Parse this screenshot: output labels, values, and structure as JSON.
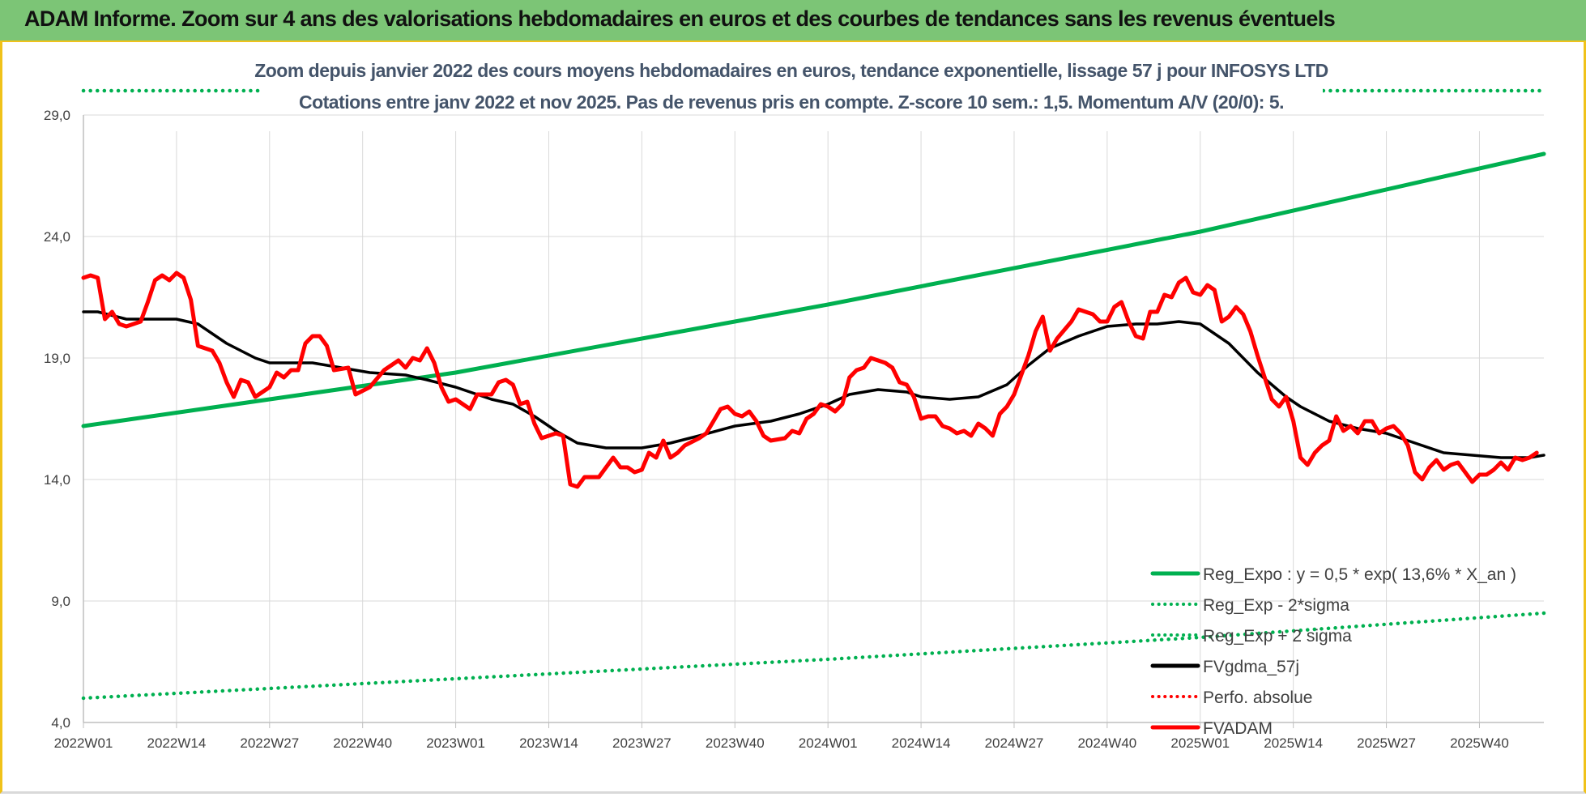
{
  "header": {
    "title": "ADAM Informe. Zoom sur 4 ans des valorisations hebdomadaires en euros et des courbes de tendances sans les revenus éventuels"
  },
  "chart_data": {
    "type": "line",
    "subtitle_line1": "Zoom depuis janvier 2022 des cours moyens hebdomadaires en euros, tendance exponentielle, lissage 57 j pour INFOSYS LTD",
    "subtitle_line2": "Cotations entre janv 2022 et nov 2025. Pas de revenus pris en compte. Z-score 10 sem.: 1,5. Momentum A/V (20/0): 5.",
    "ylim": [
      4,
      29
    ],
    "y_ticks": [
      "4,0",
      "9,0",
      "14,0",
      "19,0",
      "24,0",
      "29,0"
    ],
    "y_tick_values": [
      4,
      9,
      14,
      19,
      24,
      29
    ],
    "x_tick_labels": [
      "2022W01",
      "2022W14",
      "2022W27",
      "2022W40",
      "2023W01",
      "2023W14",
      "2023W27",
      "2023W40",
      "2024W01",
      "2024W14",
      "2024W27",
      "2024W40",
      "2025W01",
      "2025W14",
      "2025W27",
      "2025W40"
    ],
    "x_tick_weeks": [
      0,
      13,
      26,
      39,
      52,
      65,
      78,
      91,
      104,
      117,
      130,
      143,
      156,
      169,
      182,
      195
    ],
    "x_range_weeks": [
      0,
      204
    ],
    "grid": {
      "horizontal": true,
      "vertical": true
    },
    "legend_position": "bottom-right",
    "colors": {
      "reg_expo": "#00b050",
      "fvgdma": "#000000",
      "perfo": "#ff0000",
      "fvadam": "#ff0000",
      "grid": "#d9d9d9"
    },
    "series": [
      {
        "name": "Reg_Expo : y = 0,5 * exp( 13,6% *  X_an )",
        "style": "solid",
        "color": "#00b050",
        "points": [
          [
            0,
            16.2
          ],
          [
            52,
            18.4
          ],
          [
            104,
            21.2
          ],
          [
            156,
            24.2
          ],
          [
            204,
            27.4
          ]
        ]
      },
      {
        "name": "Reg_Exp - 2*sigma",
        "style": "dotted",
        "color": "#00b050",
        "points": [
          [
            0,
            5.0
          ],
          [
            52,
            5.8
          ],
          [
            104,
            6.6
          ],
          [
            156,
            7.5
          ],
          [
            204,
            8.5
          ]
        ]
      },
      {
        "name": "Reg_Exp + 2 sigma",
        "style": "dotted",
        "color": "#00b050",
        "points": [
          [
            0,
            30.0
          ],
          [
            204,
            30.0
          ]
        ]
      },
      {
        "name": "FVgdma_57j",
        "style": "solid",
        "color": "#000000",
        "points": [
          [
            0,
            20.9
          ],
          [
            2,
            20.9
          ],
          [
            6,
            20.6
          ],
          [
            10,
            20.6
          ],
          [
            13,
            20.6
          ],
          [
            16,
            20.4
          ],
          [
            20,
            19.6
          ],
          [
            24,
            19.0
          ],
          [
            26,
            18.8
          ],
          [
            30,
            18.8
          ],
          [
            32,
            18.8
          ],
          [
            36,
            18.6
          ],
          [
            40,
            18.4
          ],
          [
            45,
            18.3
          ],
          [
            48,
            18.1
          ],
          [
            52,
            17.8
          ],
          [
            57,
            17.3
          ],
          [
            60,
            17.1
          ],
          [
            63,
            16.6
          ],
          [
            66,
            16.0
          ],
          [
            69,
            15.5
          ],
          [
            73,
            15.3
          ],
          [
            78,
            15.3
          ],
          [
            82,
            15.5
          ],
          [
            86,
            15.8
          ],
          [
            91,
            16.2
          ],
          [
            96,
            16.4
          ],
          [
            100,
            16.7
          ],
          [
            104,
            17.1
          ],
          [
            107,
            17.5
          ],
          [
            111,
            17.7
          ],
          [
            115,
            17.6
          ],
          [
            117,
            17.4
          ],
          [
            121,
            17.3
          ],
          [
            125,
            17.4
          ],
          [
            129,
            17.9
          ],
          [
            132,
            18.7
          ],
          [
            135,
            19.4
          ],
          [
            139,
            19.9
          ],
          [
            143,
            20.3
          ],
          [
            147,
            20.4
          ],
          [
            150,
            20.4
          ],
          [
            153,
            20.5
          ],
          [
            156,
            20.4
          ],
          [
            160,
            19.6
          ],
          [
            164,
            18.4
          ],
          [
            168,
            17.4
          ],
          [
            170,
            17.0
          ],
          [
            174,
            16.4
          ],
          [
            178,
            16.1
          ],
          [
            182,
            15.9
          ],
          [
            186,
            15.5
          ],
          [
            190,
            15.1
          ],
          [
            194,
            15.0
          ],
          [
            198,
            14.9
          ],
          [
            202,
            14.9
          ],
          [
            204,
            15.0
          ]
        ]
      },
      {
        "name": "Perfo. absolue",
        "style": "dotted",
        "color": "#ff0000",
        "points": []
      },
      {
        "name": "FVADAM",
        "style": "solid",
        "color": "#ff0000",
        "points": [
          [
            0,
            22.3
          ],
          [
            1,
            22.4
          ],
          [
            2,
            22.3
          ],
          [
            3,
            20.6
          ],
          [
            4,
            20.9
          ],
          [
            5,
            20.4
          ],
          [
            6,
            20.3
          ],
          [
            8,
            20.5
          ],
          [
            9,
            21.3
          ],
          [
            10,
            22.2
          ],
          [
            11,
            22.4
          ],
          [
            12,
            22.2
          ],
          [
            13,
            22.5
          ],
          [
            14,
            22.3
          ],
          [
            15,
            21.4
          ],
          [
            16,
            19.5
          ],
          [
            18,
            19.3
          ],
          [
            19,
            18.8
          ],
          [
            20,
            18.0
          ],
          [
            21,
            17.4
          ],
          [
            22,
            18.1
          ],
          [
            23,
            18.0
          ],
          [
            24,
            17.4
          ],
          [
            26,
            17.8
          ],
          [
            27,
            18.4
          ],
          [
            28,
            18.2
          ],
          [
            29,
            18.5
          ],
          [
            30,
            18.5
          ],
          [
            31,
            19.6
          ],
          [
            32,
            19.9
          ],
          [
            33,
            19.9
          ],
          [
            34,
            19.5
          ],
          [
            35,
            18.5
          ],
          [
            37,
            18.6
          ],
          [
            38,
            17.5
          ],
          [
            40,
            17.8
          ],
          [
            42,
            18.5
          ],
          [
            44,
            18.9
          ],
          [
            45,
            18.6
          ],
          [
            46,
            19.0
          ],
          [
            47,
            18.9
          ],
          [
            48,
            19.4
          ],
          [
            49,
            18.8
          ],
          [
            50,
            17.8
          ],
          [
            51,
            17.2
          ],
          [
            52,
            17.3
          ],
          [
            54,
            16.9
          ],
          [
            55,
            17.5
          ],
          [
            57,
            17.5
          ],
          [
            58,
            18.0
          ],
          [
            59,
            18.1
          ],
          [
            60,
            17.9
          ],
          [
            61,
            17.1
          ],
          [
            62,
            17.2
          ],
          [
            63,
            16.3
          ],
          [
            64,
            15.7
          ],
          [
            66,
            15.9
          ],
          [
            67,
            15.8
          ],
          [
            68,
            13.8
          ],
          [
            69,
            13.7
          ],
          [
            70,
            14.1
          ],
          [
            72,
            14.1
          ],
          [
            73,
            14.5
          ],
          [
            74,
            14.9
          ],
          [
            75,
            14.5
          ],
          [
            76,
            14.5
          ],
          [
            77,
            14.3
          ],
          [
            78,
            14.4
          ],
          [
            79,
            15.1
          ],
          [
            80,
            14.9
          ],
          [
            81,
            15.6
          ],
          [
            82,
            14.9
          ],
          [
            83,
            15.1
          ],
          [
            84,
            15.4
          ],
          [
            86,
            15.7
          ],
          [
            87,
            15.9
          ],
          [
            88,
            16.4
          ],
          [
            89,
            16.9
          ],
          [
            90,
            17.0
          ],
          [
            91,
            16.7
          ],
          [
            92,
            16.6
          ],
          [
            93,
            16.8
          ],
          [
            94,
            16.4
          ],
          [
            95,
            15.8
          ],
          [
            96,
            15.6
          ],
          [
            98,
            15.7
          ],
          [
            99,
            16.0
          ],
          [
            100,
            15.9
          ],
          [
            101,
            16.5
          ],
          [
            102,
            16.7
          ],
          [
            103,
            17.1
          ],
          [
            104,
            17.0
          ],
          [
            105,
            16.8
          ],
          [
            106,
            17.1
          ],
          [
            107,
            18.2
          ],
          [
            108,
            18.5
          ],
          [
            109,
            18.6
          ],
          [
            110,
            19.0
          ],
          [
            111,
            18.9
          ],
          [
            112,
            18.8
          ],
          [
            113,
            18.6
          ],
          [
            114,
            18.0
          ],
          [
            115,
            17.9
          ],
          [
            116,
            17.4
          ],
          [
            117,
            16.5
          ],
          [
            118,
            16.6
          ],
          [
            119,
            16.6
          ],
          [
            120,
            16.2
          ],
          [
            121,
            16.1
          ],
          [
            122,
            15.9
          ],
          [
            123,
            16.0
          ],
          [
            124,
            15.8
          ],
          [
            125,
            16.3
          ],
          [
            126,
            16.1
          ],
          [
            127,
            15.8
          ],
          [
            128,
            16.7
          ],
          [
            129,
            17.0
          ],
          [
            130,
            17.5
          ],
          [
            131,
            18.3
          ],
          [
            132,
            19.1
          ],
          [
            133,
            20.1
          ],
          [
            134,
            20.7
          ],
          [
            135,
            19.3
          ],
          [
            136,
            19.8
          ],
          [
            138,
            20.5
          ],
          [
            139,
            21.0
          ],
          [
            141,
            20.8
          ],
          [
            142,
            20.5
          ],
          [
            143,
            20.5
          ],
          [
            144,
            21.1
          ],
          [
            145,
            21.3
          ],
          [
            146,
            20.5
          ],
          [
            147,
            19.9
          ],
          [
            148,
            19.8
          ],
          [
            149,
            20.9
          ],
          [
            150,
            20.9
          ],
          [
            151,
            21.6
          ],
          [
            152,
            21.5
          ],
          [
            153,
            22.1
          ],
          [
            154,
            22.3
          ],
          [
            155,
            21.7
          ],
          [
            156,
            21.6
          ],
          [
            157,
            22.0
          ],
          [
            158,
            21.8
          ],
          [
            159,
            20.5
          ],
          [
            160,
            20.7
          ],
          [
            161,
            21.1
          ],
          [
            162,
            20.8
          ],
          [
            163,
            20.1
          ],
          [
            164,
            19.1
          ],
          [
            165,
            18.2
          ],
          [
            166,
            17.3
          ],
          [
            167,
            17.0
          ],
          [
            168,
            17.4
          ],
          [
            169,
            16.4
          ],
          [
            170,
            14.9
          ],
          [
            171,
            14.6
          ],
          [
            172,
            15.1
          ],
          [
            173,
            15.4
          ],
          [
            174,
            15.6
          ],
          [
            175,
            16.6
          ],
          [
            176,
            16.0
          ],
          [
            177,
            16.2
          ],
          [
            178,
            15.9
          ],
          [
            179,
            16.4
          ],
          [
            180,
            16.4
          ],
          [
            181,
            15.9
          ],
          [
            182,
            16.1
          ],
          [
            183,
            16.2
          ],
          [
            184,
            15.9
          ],
          [
            185,
            15.4
          ],
          [
            186,
            14.3
          ],
          [
            187,
            14.0
          ],
          [
            188,
            14.5
          ],
          [
            189,
            14.8
          ],
          [
            190,
            14.4
          ],
          [
            191,
            14.6
          ],
          [
            192,
            14.7
          ],
          [
            193,
            14.3
          ],
          [
            194,
            13.9
          ],
          [
            195,
            14.2
          ],
          [
            196,
            14.2
          ],
          [
            197,
            14.4
          ],
          [
            198,
            14.7
          ],
          [
            199,
            14.4
          ],
          [
            200,
            14.9
          ],
          [
            201,
            14.8
          ],
          [
            202,
            14.9
          ],
          [
            203,
            15.1
          ]
        ]
      }
    ]
  }
}
